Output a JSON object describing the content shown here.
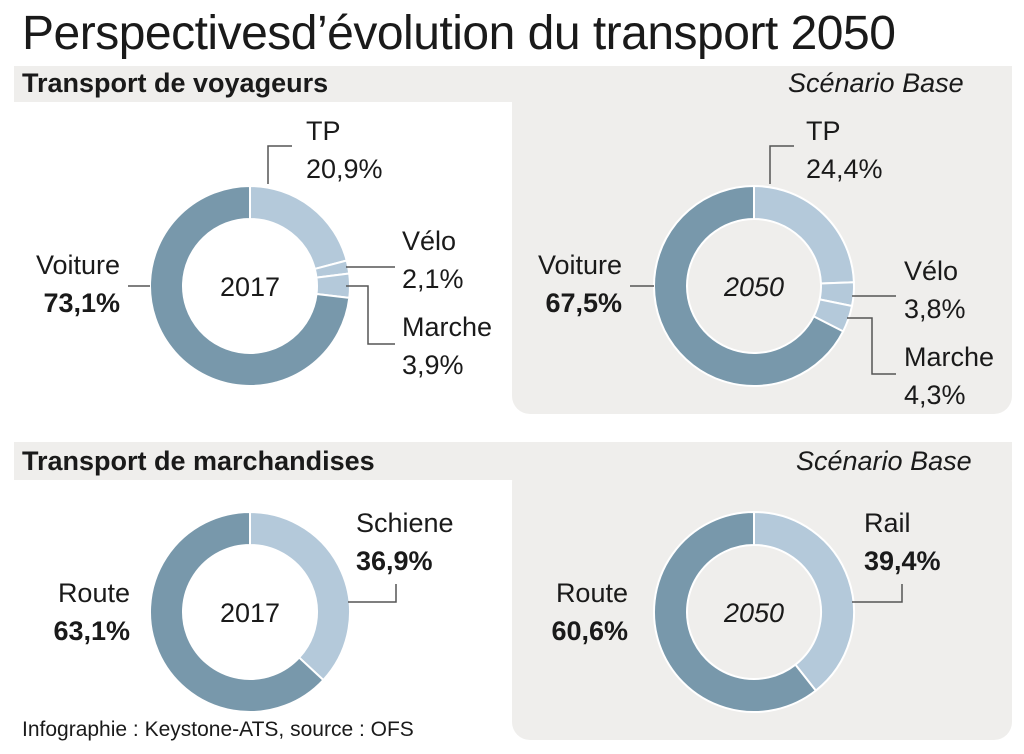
{
  "title": "Perspectivesd’évolution du transport 2050",
  "footer": "Infographie : Keystone-ATS, source : OFS",
  "colors": {
    "main": "#7898ab",
    "light": "#b4c9da",
    "panel": "#efeeec",
    "text": "#1a1a1a",
    "line": "#555555"
  },
  "sections": [
    {
      "heading": "Transport de voyageurs",
      "scenario": "Scénario Base"
    },
    {
      "heading": "Transport de marchandises",
      "scenario": "Scénario Base"
    }
  ],
  "chart_data": [
    {
      "type": "pie",
      "title": "Transport de voyageurs",
      "center_label": "2017",
      "year_italic": false,
      "categories": [
        "TP",
        "Vélo",
        "Marche",
        "Voiture"
      ],
      "values": [
        20.9,
        2.1,
        3.9,
        73.1
      ],
      "labels": [
        "20,9%",
        "2,1%",
        "3,9%",
        "73,1%"
      ],
      "bold": [
        false,
        false,
        false,
        true
      ]
    },
    {
      "type": "pie",
      "title": "Transport de voyageurs",
      "center_label": "2050",
      "year_italic": true,
      "categories": [
        "TP",
        "Vélo",
        "Marche",
        "Voiture"
      ],
      "values": [
        24.4,
        3.8,
        4.3,
        67.5
      ],
      "labels": [
        "24,4%",
        "3,8%",
        "4,3%",
        "67,5%"
      ],
      "bold": [
        false,
        false,
        false,
        true
      ]
    },
    {
      "type": "pie",
      "title": "Transport de marchandises",
      "center_label": "2017",
      "year_italic": false,
      "categories": [
        "Schiene",
        "Route"
      ],
      "values": [
        36.9,
        63.1
      ],
      "labels": [
        "36,9%",
        "63,1%"
      ],
      "bold": [
        true,
        true
      ]
    },
    {
      "type": "pie",
      "title": "Transport de marchandises",
      "center_label": "2050",
      "year_italic": true,
      "categories": [
        "Rail",
        "Route"
      ],
      "values": [
        39.4,
        60.6
      ],
      "labels": [
        "39,4%",
        "60,6%"
      ],
      "bold": [
        true,
        true
      ]
    }
  ]
}
